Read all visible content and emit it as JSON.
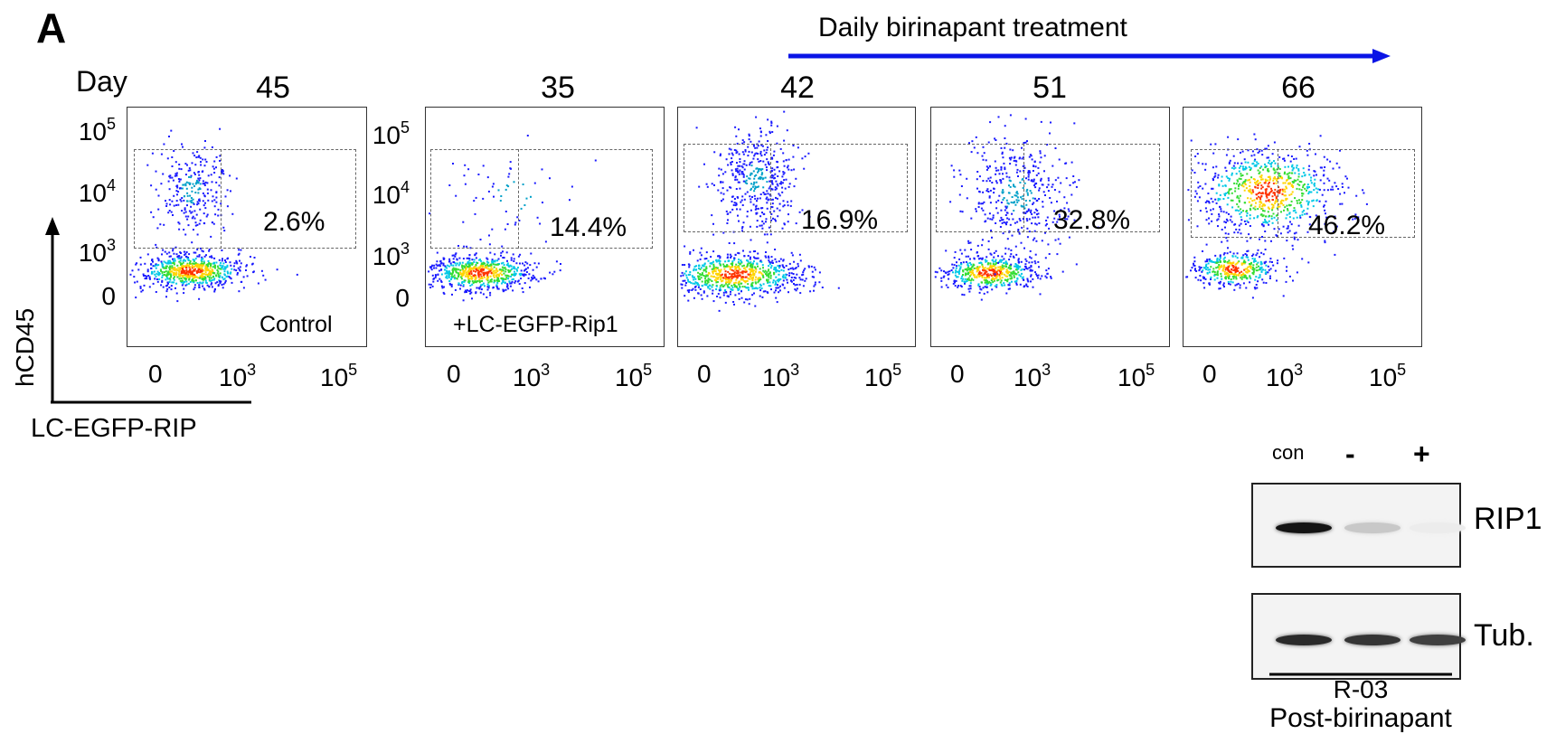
{
  "panel_letter": "A",
  "treatment_label": "Daily birinapant treatment",
  "day_label": "Day",
  "plots": [
    {
      "day": "45",
      "percent": "2.6%",
      "note": "Control"
    },
    {
      "day": "35",
      "percent": "14.4%",
      "note": "+LC-EGFP-Rip1"
    },
    {
      "day": "42",
      "percent": "16.9%",
      "note": ""
    },
    {
      "day": "51",
      "percent": "32.8%",
      "note": ""
    },
    {
      "day": "66",
      "percent": "46.2%",
      "note": ""
    }
  ],
  "y_ticks": {
    "first_plot": [
      "10",
      "5",
      "10",
      "4",
      "10",
      "3",
      "0"
    ]
  },
  "y_axis_label": "hCD45",
  "x_axis_label": "LC-EGFP-RIP",
  "x_ticks": {
    "zero": "0",
    "ten": "10",
    "exp3": "3",
    "exp5": "5"
  },
  "western_blot": {
    "lanes": [
      "con",
      "-",
      "+"
    ],
    "bands": [
      "RIP1",
      "Tub."
    ],
    "sample": "R-03",
    "condition": "Post-birinapant",
    "rip1_intensity": [
      1.0,
      0.18,
      0.02
    ],
    "tub_intensity": [
      0.9,
      0.85,
      0.8
    ]
  },
  "colors": {
    "arrow": "#0a14e6",
    "scatter_low": "#1a1aff",
    "scatter_high": "#ff2a00"
  }
}
